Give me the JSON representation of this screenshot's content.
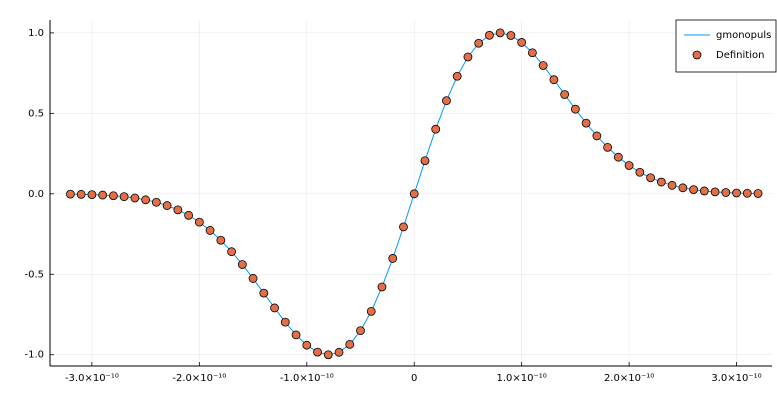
{
  "chart_data": {
    "type": "line_scatter",
    "x": [
      -3.2e-10,
      -3.1e-10,
      -3e-10,
      -2.9e-10,
      -2.8e-10,
      -2.7e-10,
      -2.6e-10,
      -2.5e-10,
      -2.4e-10,
      -2.3e-10,
      -2.2e-10,
      -2.1e-10,
      -2e-10,
      -1.9e-10,
      -1.8e-10,
      -1.7e-10,
      -1.6e-10,
      -1.5e-10,
      -1.4e-10,
      -1.3e-10,
      -1.2e-10,
      -1.1e-10,
      -1e-10,
      -9e-11,
      -8e-11,
      -7e-11,
      -6e-11,
      -5e-11,
      -4e-11,
      -3e-11,
      -2e-11,
      -1e-11,
      0,
      1e-11,
      2e-11,
      3e-11,
      4e-11,
      5e-11,
      6e-11,
      7e-11,
      8e-11,
      9e-11,
      1e-10,
      1.1e-10,
      1.2e-10,
      1.3e-10,
      1.4e-10,
      1.5e-10,
      1.6e-10,
      1.7e-10,
      1.8e-10,
      1.9e-10,
      2e-10,
      2.1e-10,
      2.2e-10,
      2.3e-10,
      2.4e-10,
      2.5e-10,
      2.6e-10,
      2.7e-10,
      2.8e-10,
      2.9e-10,
      3e-10,
      3.1e-10,
      3.2e-10
    ],
    "series": [
      {
        "name": "gmonopuls",
        "color": "#009af9",
        "style": "line",
        "values": [
          -0.002,
          -0.0033,
          -0.0051,
          -0.0079,
          -0.0119,
          -0.0177,
          -0.0259,
          -0.0373,
          -0.0527,
          -0.0731,
          -0.0998,
          -0.1338,
          -0.1761,
          -0.2276,
          -0.2887,
          -0.3596,
          -0.4391,
          -0.5259,
          -0.6171,
          -0.7092,
          -0.7975,
          -0.8767,
          -0.9407,
          -0.9837,
          -1.0,
          -0.985,
          -0.9356,
          -0.8503,
          -0.7304,
          -0.5789,
          -0.4015,
          -0.2056,
          0,
          0.2056,
          0.4015,
          0.5789,
          0.7304,
          0.8503,
          0.9356,
          0.985,
          1.0,
          0.9837,
          0.9407,
          0.8767,
          0.7975,
          0.7092,
          0.6171,
          0.5259,
          0.4391,
          0.3596,
          0.2887,
          0.2276,
          0.1761,
          0.1338,
          0.0998,
          0.0731,
          0.0527,
          0.0373,
          0.0259,
          0.0177,
          0.0119,
          0.0079,
          0.0051,
          0.0033,
          0.002
        ]
      },
      {
        "name": "Definition",
        "color": "#e26f46",
        "style": "scatter",
        "values": [
          -0.002,
          -0.0033,
          -0.0051,
          -0.0079,
          -0.0119,
          -0.0177,
          -0.0259,
          -0.0373,
          -0.0527,
          -0.0731,
          -0.0998,
          -0.1338,
          -0.1761,
          -0.2276,
          -0.2887,
          -0.3596,
          -0.4391,
          -0.5259,
          -0.6171,
          -0.7092,
          -0.7975,
          -0.8767,
          -0.9407,
          -0.9837,
          -1.0,
          -0.985,
          -0.9356,
          -0.8503,
          -0.7304,
          -0.5789,
          -0.4015,
          -0.2056,
          0,
          0.2056,
          0.4015,
          0.5789,
          0.7304,
          0.8503,
          0.9356,
          0.985,
          1.0,
          0.9837,
          0.9407,
          0.8767,
          0.7975,
          0.7092,
          0.6171,
          0.5259,
          0.4391,
          0.3596,
          0.2887,
          0.2276,
          0.1761,
          0.1338,
          0.0998,
          0.0731,
          0.0527,
          0.0373,
          0.0259,
          0.0177,
          0.0119,
          0.0079,
          0.0051,
          0.0033,
          0.002
        ]
      }
    ],
    "xlim": [
      -3.39e-10,
      3.33e-10
    ],
    "xticks": [
      {
        "value": -3e-10,
        "label": "-3.0×10⁻¹⁰"
      },
      {
        "value": -2e-10,
        "label": "-2.0×10⁻¹⁰"
      },
      {
        "value": -1e-10,
        "label": "-1.0×10⁻¹⁰"
      },
      0,
      {
        "value": 1e-10,
        "label": "1.0×10⁻¹⁰"
      },
      {
        "value": 2e-10,
        "label": "2.0×10⁻¹⁰"
      },
      {
        "value": 3e-10,
        "label": "3.0×10⁻¹⁰"
      }
    ],
    "ylim": [
      -1.07,
      1.08
    ],
    "yticks": [
      {
        "value": -1,
        "label": "-1.0"
      },
      {
        "value": -0.5,
        "label": "-0.5"
      },
      {
        "value": 0,
        "label": "0.0"
      },
      {
        "value": 0.5,
        "label": "0.5"
      },
      {
        "value": 1,
        "label": "1.0"
      }
    ],
    "grid": true,
    "legend": "top-right"
  }
}
